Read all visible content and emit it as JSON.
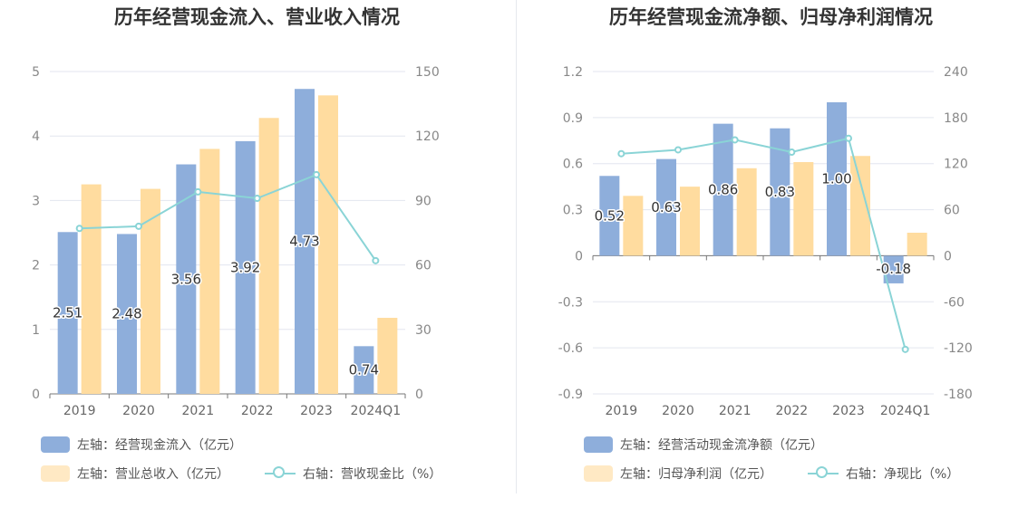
{
  "chart_data": [
    {
      "type": "bar",
      "title": "历年经营现金流入、营业收入情况",
      "categories": [
        "2019",
        "2020",
        "2021",
        "2022",
        "2023",
        "2024Q1"
      ],
      "left_axis": {
        "min": 0,
        "max": 5,
        "ticks": [
          "0",
          "1",
          "2",
          "3",
          "4",
          "5"
        ]
      },
      "right_axis": {
        "min": 0,
        "max": 150,
        "ticks": [
          "0",
          "30",
          "60",
          "90",
          "120",
          "150"
        ]
      },
      "grid": true,
      "legend_position": "bottom-left",
      "series": [
        {
          "name": "左轴：经营现金流入（亿元）",
          "kind": "bar",
          "axis": "left",
          "color": "#8eaedb",
          "values": [
            2.51,
            2.48,
            3.56,
            3.92,
            4.73,
            0.74
          ],
          "labels": [
            "2.51",
            "2.48",
            "3.56",
            "3.92",
            "4.73",
            "0.74"
          ]
        },
        {
          "name": "左轴：营业总收入（亿元）",
          "kind": "bar",
          "axis": "left",
          "color": "#ffdc9f",
          "values": [
            3.25,
            3.18,
            3.8,
            4.28,
            4.63,
            1.18
          ]
        },
        {
          "name": "右轴：营收现金比（%）",
          "kind": "line",
          "axis": "right",
          "color": "#8ad4d6",
          "values": [
            77,
            78,
            94,
            91,
            102,
            62
          ]
        }
      ]
    },
    {
      "type": "bar",
      "title": "历年经营现金流净额、归母净利润情况",
      "categories": [
        "2019",
        "2020",
        "2021",
        "2022",
        "2023",
        "2024Q1"
      ],
      "left_axis": {
        "min": -0.9,
        "max": 1.2,
        "ticks": [
          "-0.9",
          "-0.6",
          "-0.3",
          "0",
          "0.3",
          "0.6",
          "0.9",
          "1.2"
        ]
      },
      "right_axis": {
        "min": -180,
        "max": 240,
        "ticks": [
          "-180",
          "-120",
          "-60",
          "0",
          "60",
          "120",
          "180",
          "240"
        ]
      },
      "grid": true,
      "legend_position": "bottom-left",
      "series": [
        {
          "name": "左轴：经营活动现金流净额（亿元）",
          "kind": "bar",
          "axis": "left",
          "color": "#8eaedb",
          "values": [
            0.52,
            0.63,
            0.86,
            0.83,
            1.0,
            -0.18
          ],
          "labels": [
            "0.52",
            "0.63",
            "0.86",
            "0.83",
            "1.00",
            "-0.18"
          ]
        },
        {
          "name": "左轴：归母净利润（亿元）",
          "kind": "bar",
          "axis": "left",
          "color": "#ffdc9f",
          "values": [
            0.39,
            0.45,
            0.57,
            0.61,
            0.65,
            0.15
          ]
        },
        {
          "name": "右轴：净现比（%）",
          "kind": "line",
          "axis": "right",
          "color": "#8ad4d6",
          "values": [
            133,
            138,
            151,
            135,
            153,
            -122
          ]
        }
      ]
    }
  ]
}
